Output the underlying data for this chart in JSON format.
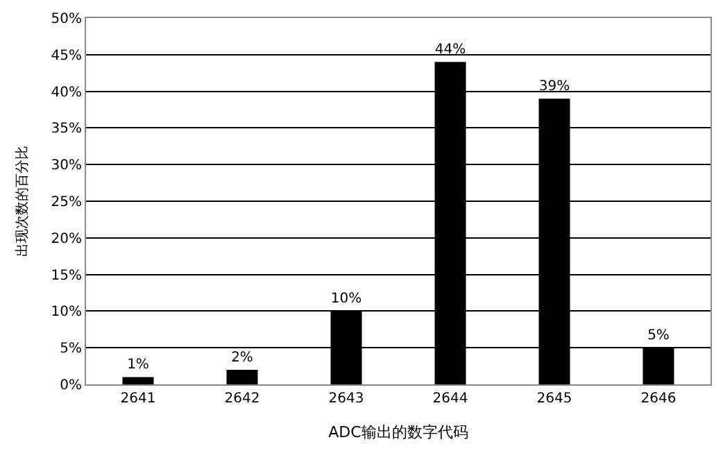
{
  "chart_data": {
    "type": "bar",
    "xlabel": "ADC输出的数字代码",
    "ylabel": "出现次数的百分比",
    "categories": [
      "2641",
      "2642",
      "2643",
      "2644",
      "2645",
      "2646"
    ],
    "values": [
      1,
      2,
      10,
      44,
      39,
      5
    ],
    "color": "#000000",
    "value_labels": [
      "1%",
      "2%",
      "10%",
      "44%",
      "39%",
      "5%"
    ],
    "ylim": [
      0,
      50
    ],
    "yticks": [
      {
        "value": 0,
        "label": "0%"
      },
      {
        "value": 5,
        "label": "5%"
      },
      {
        "value": 10,
        "label": "10%"
      },
      {
        "value": 15,
        "label": "15%"
      },
      {
        "value": 20,
        "label": "20%"
      },
      {
        "value": 25,
        "label": "25%"
      },
      {
        "value": 30,
        "label": "30%"
      },
      {
        "value": 35,
        "label": "35%"
      },
      {
        "value": 40,
        "label": "40%"
      },
      {
        "value": 45,
        "label": "45%"
      },
      {
        "value": 50,
        "label": "50%"
      }
    ],
    "grid": "y",
    "legend": false
  }
}
